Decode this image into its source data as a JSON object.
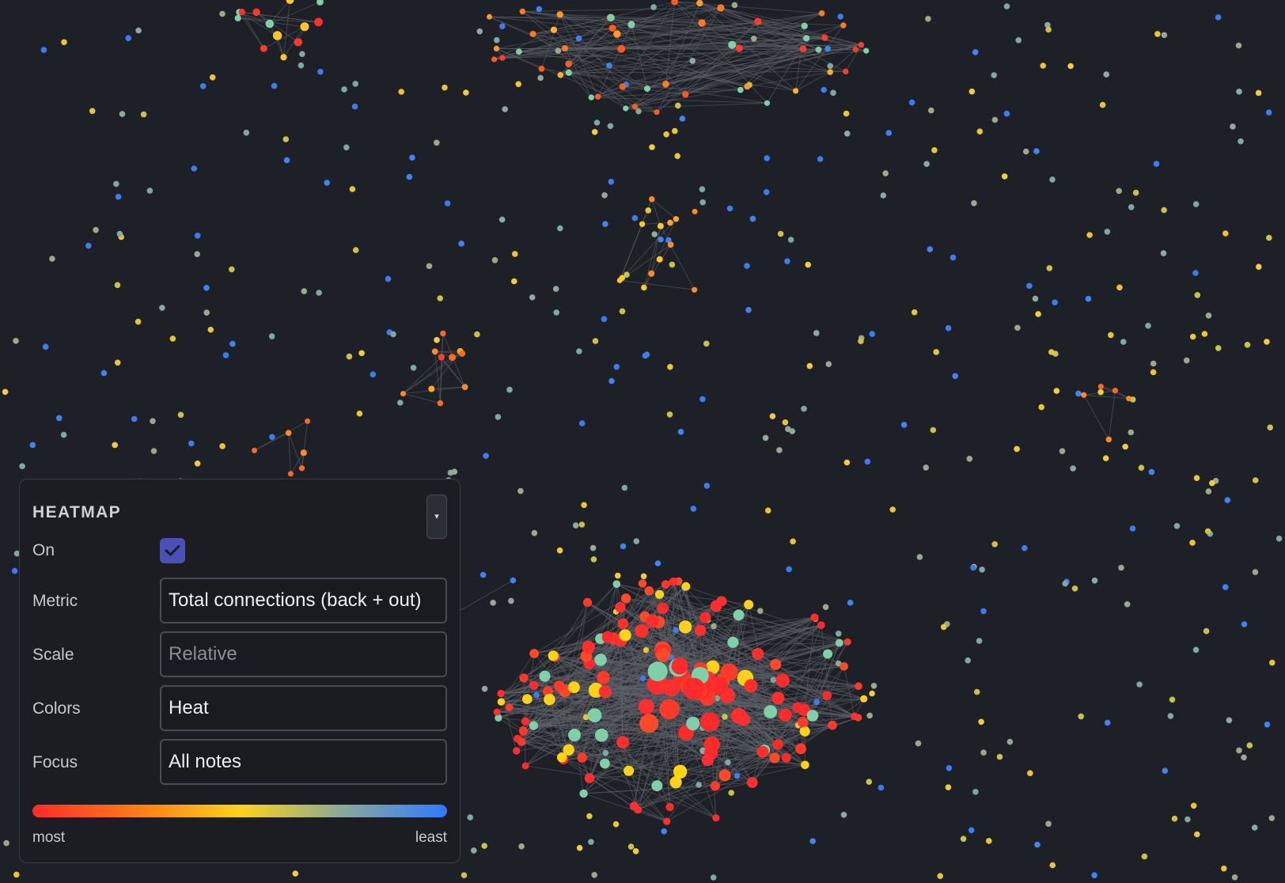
{
  "heatmap_panel": {
    "title": "HEATMAP",
    "collapse_glyph": "▾",
    "on_label": "On",
    "on_checked": true,
    "metric_label": "Metric",
    "metric_value": "Total connections (back + out)",
    "scale_label": "Scale",
    "scale_placeholder": "Relative",
    "colors_label": "Colors",
    "colors_value": "Heat",
    "focus_label": "Focus",
    "focus_value": "All notes",
    "legend_most": "most",
    "legend_least": "least"
  },
  "theme": {
    "background": "#1e2027",
    "heat_scale": [
      "#ff2b2b",
      "#ff7a1a",
      "#ffd21a",
      "#8aa89a",
      "#2f7bff"
    ],
    "checkbox_accent": "#4d4fb8"
  },
  "icons": {
    "checkbox": "check-icon",
    "dropdown": "chevron-down-icon"
  }
}
